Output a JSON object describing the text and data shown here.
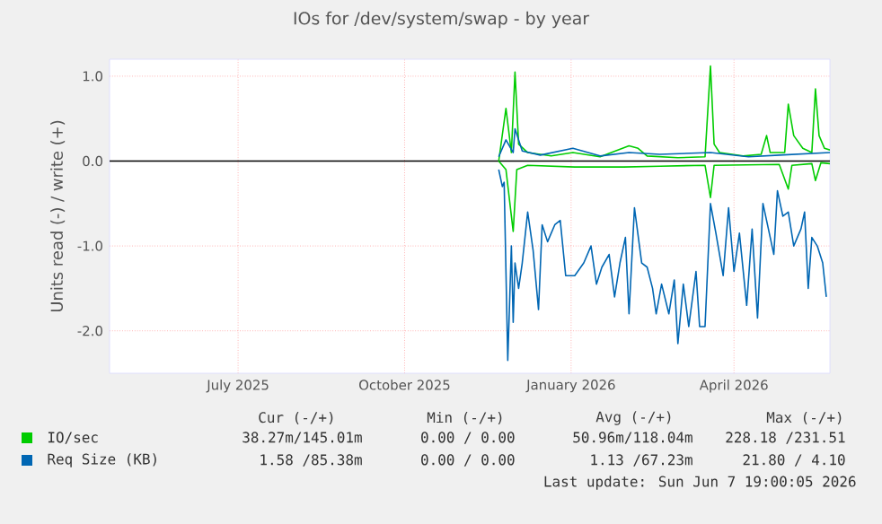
{
  "chart_data": {
    "type": "line",
    "title": "IOs for /dev/system/swap - by year",
    "ylabel": "Units read (-) / write (+)",
    "xlim": [
      "2025-05-05",
      "2026-06-07"
    ],
    "ylim": [
      -2.5,
      1.2
    ],
    "xticks": [
      {
        "value": "2025-07-15",
        "label": "July 2025"
      },
      {
        "value": "2025-10-15",
        "label": "October 2025"
      },
      {
        "value": "2026-01-15",
        "label": "January 2026"
      },
      {
        "value": "2026-04-15",
        "label": "April 2026"
      }
    ],
    "yticks": [
      {
        "value": -2,
        "label": "-2.0"
      },
      {
        "value": -1,
        "label": "-1.0"
      },
      {
        "value": 0,
        "label": "0.0"
      },
      {
        "value": 1,
        "label": "1.0"
      }
    ],
    "grid": true,
    "legend": "bottom",
    "ref_lines": [
      {
        "axis": "y",
        "value": 0,
        "color": "#000000"
      }
    ],
    "series": [
      {
        "color": "#00cc00",
        "x": [
          "2025-12-06",
          "2025-12-10",
          "2025-12-14",
          "2025-12-16",
          "2025-12-22",
          "2026-01-17",
          "2026-02-13",
          "2026-03-05",
          "2026-03-30",
          "2026-04-02",
          "2026-04-04",
          "2026-05-10",
          "2026-05-15",
          "2026-05-17",
          "2026-05-28",
          "2026-05-30",
          "2026-06-02",
          "2026-06-07"
        ],
        "values": [
          0,
          -0.1,
          -0.83,
          -0.1,
          -0.05,
          -0.07,
          -0.07,
          -0.06,
          -0.05,
          -0.43,
          -0.05,
          -0.04,
          -0.33,
          -0.05,
          -0.03,
          -0.23,
          -0.02,
          -0.03
        ]
      },
      {
        "name": "IO/sec",
        "color": "#00cc00",
        "x": [
          "2025-12-06",
          "2025-12-10",
          "2025-12-13",
          "2025-12-15",
          "2025-12-17",
          "2025-12-22",
          "2026-01-04",
          "2026-01-16",
          "2026-01-31",
          "2026-02-16",
          "2026-02-21",
          "2026-02-26",
          "2026-03-15",
          "2026-03-30",
          "2026-04-02",
          "2026-04-04",
          "2026-04-07",
          "2026-04-20",
          "2026-04-30",
          "2026-05-03",
          "2026-05-05",
          "2026-05-13",
          "2026-05-15",
          "2026-05-18",
          "2026-05-23",
          "2026-05-28",
          "2026-05-30",
          "2026-06-01",
          "2026-06-04",
          "2026-06-07"
        ],
        "values": [
          0,
          0.62,
          0.1,
          1.05,
          0.2,
          0.1,
          0.06,
          0.1,
          0.05,
          0.18,
          0.15,
          0.06,
          0.04,
          0.05,
          1.12,
          0.2,
          0.1,
          0.06,
          0.08,
          0.3,
          0.1,
          0.1,
          0.67,
          0.3,
          0.15,
          0.1,
          0.85,
          0.3,
          0.15,
          0.13
        ]
      },
      {
        "color": "#0066b3",
        "x": [
          "2025-12-06",
          "2025-12-08",
          "2025-12-09",
          "2025-12-11",
          "2025-12-13",
          "2025-12-14",
          "2025-12-15",
          "2025-12-17",
          "2025-12-19",
          "2025-12-22",
          "2025-12-25",
          "2025-12-28",
          "2025-12-30",
          "2026-01-02",
          "2026-01-06",
          "2026-01-09",
          "2026-01-12",
          "2026-01-17",
          "2026-01-22",
          "2026-01-26",
          "2026-01-29",
          "2026-02-01",
          "2026-02-05",
          "2026-02-08",
          "2026-02-11",
          "2026-02-14",
          "2026-02-16",
          "2026-02-19",
          "2026-02-23",
          "2026-02-26",
          "2026-03-01",
          "2026-03-03",
          "2026-03-06",
          "2026-03-10",
          "2026-03-13",
          "2026-03-15",
          "2026-03-18",
          "2026-03-21",
          "2026-03-25",
          "2026-03-27",
          "2026-03-30",
          "2026-04-02",
          "2026-04-05",
          "2026-04-09",
          "2026-04-12",
          "2026-04-15",
          "2026-04-18",
          "2026-04-22",
          "2026-04-25",
          "2026-04-28",
          "2026-05-01",
          "2026-05-04",
          "2026-05-07",
          "2026-05-09",
          "2026-05-12",
          "2026-05-15",
          "2026-05-18",
          "2026-05-22",
          "2026-05-24",
          "2026-05-26",
          "2026-05-28",
          "2026-05-31",
          "2026-06-03",
          "2026-06-05"
        ],
        "values": [
          -0.1,
          -0.3,
          -0.25,
          -2.35,
          -1.0,
          -1.9,
          -1.2,
          -1.5,
          -1.2,
          -0.6,
          -1.05,
          -1.75,
          -0.75,
          -0.95,
          -0.75,
          -0.7,
          -1.35,
          -1.35,
          -1.2,
          -1.0,
          -1.45,
          -1.25,
          -1.1,
          -1.6,
          -1.2,
          -0.9,
          -1.8,
          -0.55,
          -1.2,
          -1.25,
          -1.5,
          -1.8,
          -1.45,
          -1.8,
          -1.4,
          -2.15,
          -1.45,
          -1.95,
          -1.3,
          -1.95,
          -1.95,
          -0.5,
          -0.85,
          -1.35,
          -0.55,
          -1.3,
          -0.85,
          -1.7,
          -0.8,
          -1.85,
          -0.5,
          -0.8,
          -1.1,
          -0.35,
          -0.65,
          -0.6,
          -1.0,
          -0.8,
          -0.6,
          -1.5,
          -0.9,
          -1.0,
          -1.2,
          -1.6
        ]
      },
      {
        "name": "Req Size (KB)",
        "color": "#0066b3",
        "x": [
          "2025-12-06",
          "2025-12-10",
          "2025-12-14",
          "2025-12-15",
          "2025-12-19",
          "2025-12-29",
          "2026-01-16",
          "2026-01-31",
          "2026-02-16",
          "2026-03-05",
          "2026-04-02",
          "2026-04-23",
          "2026-05-10",
          "2026-06-07"
        ],
        "values": [
          0.05,
          0.25,
          0.1,
          0.38,
          0.12,
          0.07,
          0.15,
          0.06,
          0.1,
          0.08,
          0.1,
          0.05,
          0.07,
          0.1
        ]
      }
    ],
    "annotations": [
      "Cur (-/+)",
      "Min (-/+)",
      "Avg (-/+)",
      "Max (-/+)",
      "38.27m/145.01m",
      "0.00 / 0.00",
      "50.96m/118.04m",
      "228.18 /231.51",
      "1.58 /85.38m",
      "0.00 / 0.00",
      "1.13 /67.23m",
      "21.80 / 4.10",
      "Last update: Sun Jun  7 19:00:05 2026"
    ]
  }
}
